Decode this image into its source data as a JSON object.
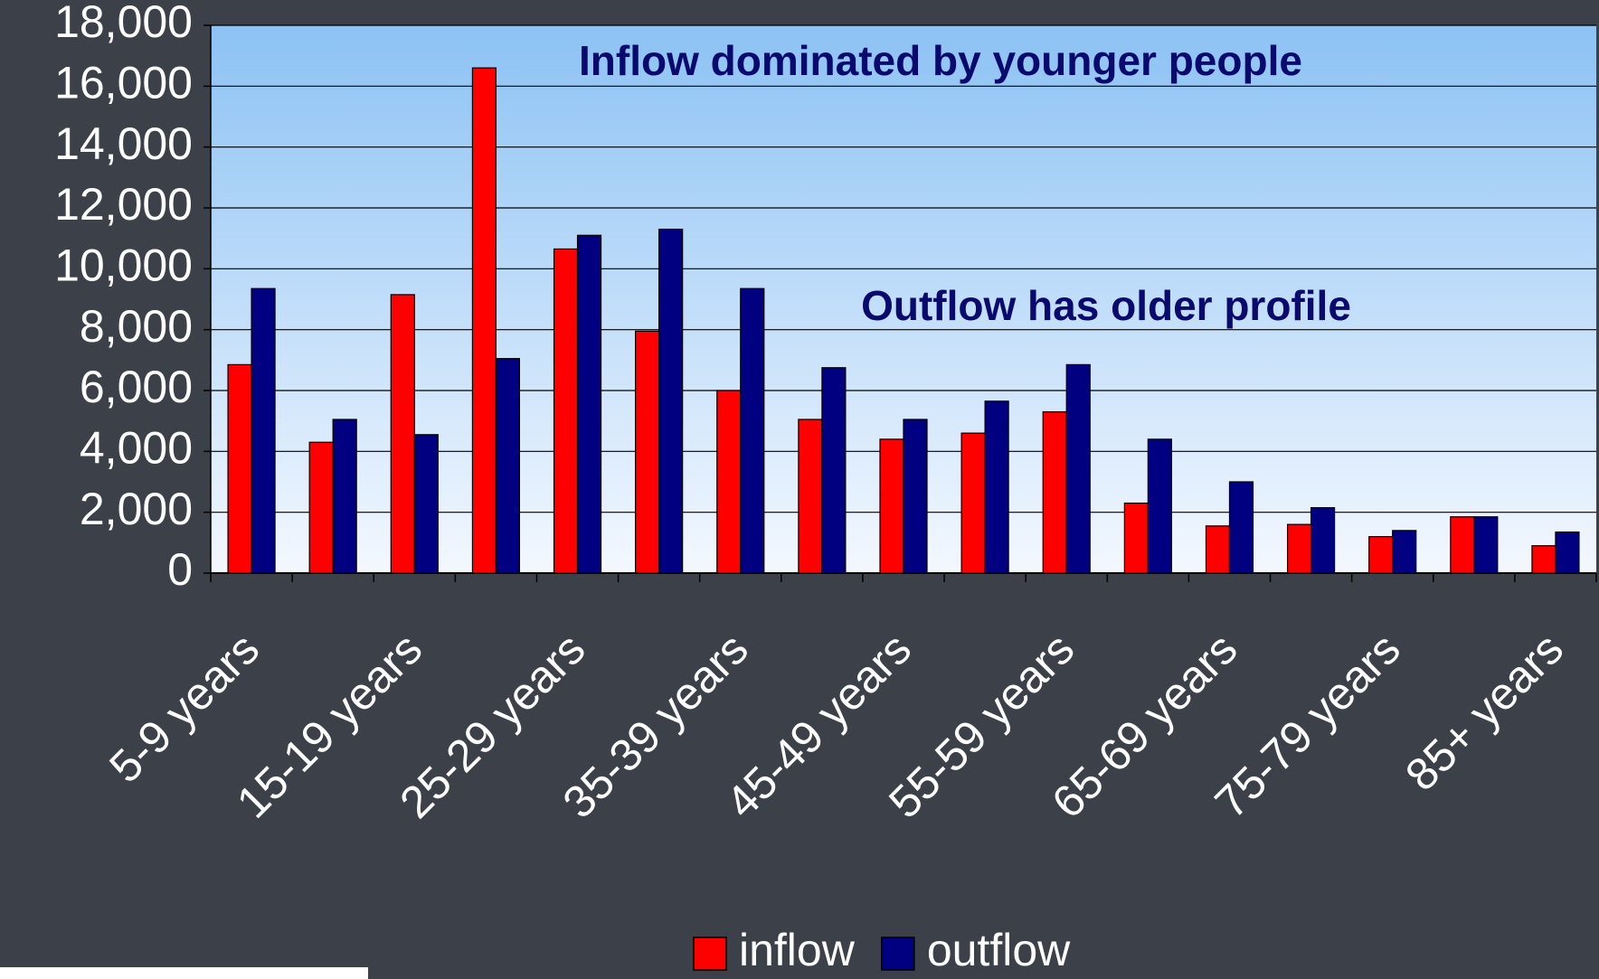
{
  "chart_data": {
    "type": "bar",
    "annotations": [
      "Inflow dominated by younger people",
      "Outflow has older profile"
    ],
    "categories": [
      "5-9 years",
      null,
      "15-19 years",
      null,
      "25-29 years",
      null,
      "35-39 years",
      null,
      "45-49 years",
      null,
      "55-59 years",
      null,
      "65-69 years",
      null,
      "75-79 years",
      null,
      "85+ years"
    ],
    "series": [
      {
        "name": "inflow",
        "color": "#ff0000",
        "values": [
          6850,
          4300,
          9150,
          16600,
          10650,
          7950,
          6000,
          5050,
          4400,
          4600,
          5300,
          2300,
          1550,
          1600,
          1200,
          1850,
          900
        ]
      },
      {
        "name": "outflow",
        "color": "#000080",
        "values": [
          9350,
          5050,
          4550,
          7050,
          11100,
          11300,
          9350,
          6750,
          5050,
          5650,
          6850,
          4400,
          3000,
          2150,
          1400,
          1850,
          1350
        ]
      }
    ],
    "ylim": [
      0,
      18000
    ],
    "yticks": [
      0,
      {
        "value": 2000,
        "label": "2,000"
      },
      {
        "value": 4000,
        "label": "4,000"
      },
      {
        "value": 6000,
        "label": "6,000"
      },
      {
        "value": 8000,
        "label": "8,000"
      },
      {
        "value": 10000,
        "label": "10,000"
      },
      {
        "value": 12000,
        "label": "12,000"
      },
      {
        "value": 14000,
        "label": "14,000"
      },
      {
        "value": 16000,
        "label": "16,000"
      },
      {
        "value": 18000,
        "label": "18,000"
      }
    ],
    "grid": true,
    "legend": "bottom"
  }
}
